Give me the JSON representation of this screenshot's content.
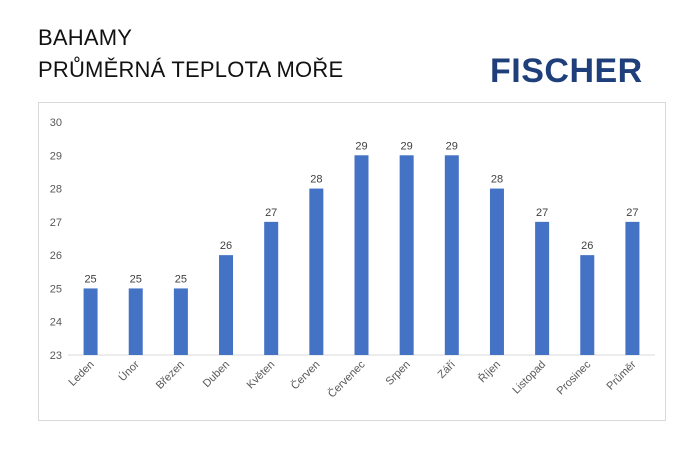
{
  "header": {
    "title_line1": "BAHAMY",
    "title_line2": "PRŮMĚRNÁ TEPLOTA MOŘE"
  },
  "logo": {
    "text": "FISCHER",
    "color": "#1f3f7a"
  },
  "chart_data": {
    "type": "bar",
    "categories": [
      "Leden",
      "Únor",
      "Březen",
      "Duben",
      "Květen",
      "Červen",
      "Červenec",
      "Srpen",
      "Září",
      "Říjen",
      "Listopad",
      "Prosinec",
      "Průměr"
    ],
    "values": [
      25,
      25,
      25,
      26,
      27,
      28,
      29,
      29,
      29,
      28,
      27,
      26,
      27
    ],
    "ylim": [
      23,
      30
    ],
    "yticks": [
      23,
      24,
      25,
      26,
      27,
      28,
      29,
      30
    ],
    "data_labels": true,
    "grid": false,
    "bar_color": "#4472c4"
  }
}
